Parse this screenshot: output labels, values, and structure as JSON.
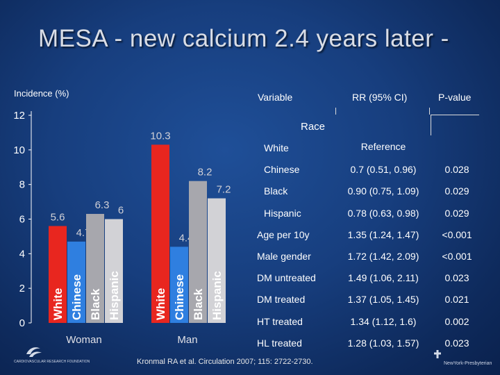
{
  "title": "MESA - new calcium  2.4 years later -",
  "chart_data": {
    "type": "bar",
    "ylabel": "Incidence (%)",
    "ylim": [
      0,
      12
    ],
    "yticks": [
      0,
      2,
      4,
      6,
      8,
      10,
      12
    ],
    "groups": [
      "Woman",
      "Man"
    ],
    "series": [
      {
        "name": "White",
        "values": [
          5.6,
          10.3
        ],
        "color": "#e8261f"
      },
      {
        "name": "Chinese",
        "values": [
          4.7,
          4.4
        ],
        "color": "#2f7fe0"
      },
      {
        "name": "Black",
        "values": [
          6.3,
          8.2
        ],
        "color": "#a7a7ad"
      },
      {
        "name": "Hispanic",
        "values": [
          6.0,
          7.2
        ],
        "color": "#d2d2d6"
      }
    ],
    "value_labels": {
      "Woman": [
        "5.6",
        "4.7",
        "6.3",
        "6"
      ],
      "Man": [
        "10.3",
        "4.4",
        "8.2",
        "7.2"
      ]
    }
  },
  "table": {
    "headers": {
      "variable": "Variable",
      "rr": "RR (95% CI)",
      "p": "P-value"
    },
    "section": "Race",
    "rows": [
      {
        "variable": "White",
        "rr": "Reference",
        "p": ""
      },
      {
        "variable": "Chinese",
        "rr": "0.7 (0.51, 0.96)",
        "p": "0.028"
      },
      {
        "variable": "Black",
        "rr": "0.90 (0.75, 1.09)",
        "p": "0.029"
      },
      {
        "variable": "Hispanic",
        "rr": "0.78 (0.63, 0.98)",
        "p": "0.029"
      },
      {
        "variable": "Age  per 10y",
        "rr": "1.35 (1.24, 1.47)",
        "p": "<0.001"
      },
      {
        "variable": "Male gender",
        "rr": "1.72 (1.42, 2.09)",
        "p": "<0.001"
      },
      {
        "variable": "DM untreated",
        "rr": "1.49 (1.06, 2.11)",
        "p": "0.023"
      },
      {
        "variable": "DM treated",
        "rr": "1.37 (1.05, 1.45)",
        "p": "0.021"
      },
      {
        "variable": "HT treated",
        "rr": "1.34 (1.12, 1.6)",
        "p": "0.002"
      },
      {
        "variable": "HL treated",
        "rr": "1.28 (1.03, 1.57)",
        "p": "0.023"
      }
    ]
  },
  "citation": "Kronmal RA et al. Circulation 2007; 115: 2722-2730.",
  "logos": {
    "left": "CARDIOVASCULAR RESEARCH FOUNDATION",
    "right": "NewYork-Presbyterian"
  }
}
